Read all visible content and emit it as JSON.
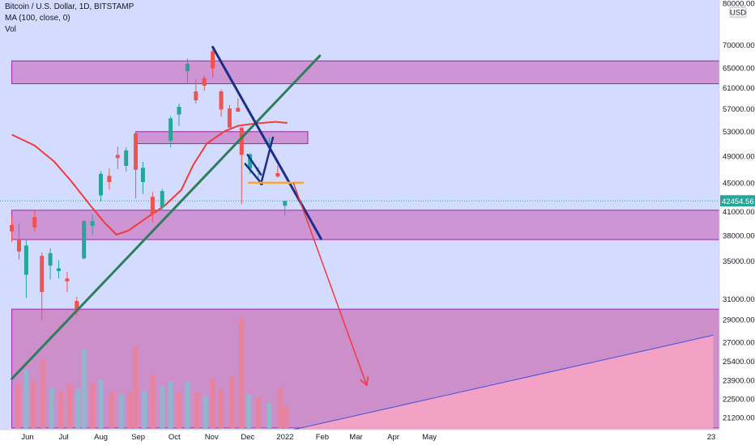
{
  "legend": {
    "symbol_line": "Bitcoin / U.S. Dollar, 1D, BITSTAMP",
    "ma_line": "MA (100, close, 0)",
    "vol_line": "Vol"
  },
  "currency_label": "USD",
  "colors": {
    "plot_bg": "#d3dcff",
    "zone_fill": "#cc88cc",
    "zone_border": "#9c27b0",
    "volume_zone": "#cc8fca",
    "pink_area": "#f7a3c3",
    "candle_up": "#26a69a",
    "candle_down": "#ef5350",
    "vol_up": "#8fb8ce",
    "vol_down": "#e9829b",
    "ma_line": "#f23a3a",
    "uptrend_line": "#2e7d5b",
    "downtrend_line": "#1a2f8a",
    "orange_level": "#f7a833",
    "projection_arrow": "#f23a3a",
    "last_price_bg": "#26a69a"
  },
  "chart_data": {
    "type": "candlestick",
    "y_scale": "log",
    "ylim": [
      20500,
      80000
    ],
    "x_ticks": [
      "Jun",
      "Jul",
      "Aug",
      "Sep",
      "Oct",
      "Nov",
      "Dec",
      "2022",
      "Feb",
      "Mar",
      "Apr",
      "May",
      "23"
    ],
    "y_ticks": [
      80000,
      70000,
      65000,
      61000,
      57000,
      53000,
      49000,
      45000,
      41000,
      38000,
      35000,
      31000,
      29000,
      27000,
      25400,
      23900,
      22500,
      21200
    ],
    "last_price": 42454.56,
    "last_price_label": "42454.56",
    "ma_label": "MA (100, close, 0)",
    "candles": [
      {
        "date": "2021-05-27",
        "o": 39300,
        "h": 40400,
        "l": 37200,
        "c": 38500
      },
      {
        "date": "2021-06-02",
        "o": 37500,
        "h": 39500,
        "l": 35200,
        "c": 36100
      },
      {
        "date": "2021-06-08",
        "o": 33500,
        "h": 37400,
        "l": 31100,
        "c": 36800
      },
      {
        "date": "2021-06-15",
        "o": 40300,
        "h": 41300,
        "l": 38500,
        "c": 39000
      },
      {
        "date": "2021-06-21",
        "o": 35600,
        "h": 36000,
        "l": 29000,
        "c": 31700
      },
      {
        "date": "2021-06-28",
        "o": 34500,
        "h": 36500,
        "l": 33000,
        "c": 35900
      },
      {
        "date": "2021-07-05",
        "o": 33900,
        "h": 35100,
        "l": 33100,
        "c": 34200
      },
      {
        "date": "2021-07-12",
        "o": 33100,
        "h": 33800,
        "l": 31700,
        "c": 32800
      },
      {
        "date": "2021-07-20",
        "o": 30800,
        "h": 31200,
        "l": 29400,
        "c": 29800
      },
      {
        "date": "2021-07-26",
        "o": 35300,
        "h": 39900,
        "l": 35200,
        "c": 39800
      },
      {
        "date": "2021-08-02",
        "o": 39200,
        "h": 40600,
        "l": 38000,
        "c": 39800
      },
      {
        "date": "2021-08-09",
        "o": 43200,
        "h": 46700,
        "l": 42400,
        "c": 46300
      },
      {
        "date": "2021-08-16",
        "o": 46000,
        "h": 47100,
        "l": 44000,
        "c": 45100
      },
      {
        "date": "2021-08-23",
        "o": 49200,
        "h": 50500,
        "l": 47000,
        "c": 48700
      },
      {
        "date": "2021-08-30",
        "o": 47500,
        "h": 50400,
        "l": 46600,
        "c": 49900
      },
      {
        "date": "2021-09-07",
        "o": 52700,
        "h": 52900,
        "l": 42800,
        "c": 46900
      },
      {
        "date": "2021-09-13",
        "o": 45100,
        "h": 48100,
        "l": 43400,
        "c": 47200
      },
      {
        "date": "2021-09-21",
        "o": 43000,
        "h": 43700,
        "l": 39600,
        "c": 40700
      },
      {
        "date": "2021-09-29",
        "o": 41600,
        "h": 44100,
        "l": 41200,
        "c": 43800
      },
      {
        "date": "2021-10-06",
        "o": 51500,
        "h": 55700,
        "l": 50400,
        "c": 55300
      },
      {
        "date": "2021-10-13",
        "o": 56000,
        "h": 58000,
        "l": 54000,
        "c": 57400
      },
      {
        "date": "2021-10-20",
        "o": 64300,
        "h": 67000,
        "l": 62000,
        "c": 65900
      },
      {
        "date": "2021-10-27",
        "o": 60300,
        "h": 62600,
        "l": 58000,
        "c": 58600
      },
      {
        "date": "2021-11-03",
        "o": 62900,
        "h": 63500,
        "l": 60400,
        "c": 61400
      },
      {
        "date": "2021-11-10",
        "o": 68600,
        "h": 69000,
        "l": 63000,
        "c": 64900
      },
      {
        "date": "2021-11-17",
        "o": 60300,
        "h": 60700,
        "l": 55600,
        "c": 56900
      },
      {
        "date": "2021-11-24",
        "o": 57100,
        "h": 57700,
        "l": 53600,
        "c": 53700
      },
      {
        "date": "2021-12-01",
        "o": 57200,
        "h": 59000,
        "l": 56500,
        "c": 56500
      },
      {
        "date": "2021-12-04",
        "o": 53700,
        "h": 53800,
        "l": 42000,
        "c": 49200
      },
      {
        "date": "2021-12-11",
        "o": 47100,
        "h": 49500,
        "l": 46300,
        "c": 49300
      },
      {
        "date": "2021-12-18",
        "o": 46700,
        "h": 47300,
        "l": 45500,
        "c": 46800
      },
      {
        "date": "2021-12-27",
        "o": 50700,
        "h": 52000,
        "l": 50500,
        "c": 50700
      },
      {
        "date": "2022-01-03",
        "o": 46400,
        "h": 47500,
        "l": 45700,
        "c": 45900
      },
      {
        "date": "2022-01-09",
        "o": 41800,
        "h": 42300,
        "l": 40500,
        "c": 42454.56
      }
    ],
    "ma100": [
      {
        "date": "2021-05-27",
        "v": 52500
      },
      {
        "date": "2021-06-15",
        "v": 50700
      },
      {
        "date": "2021-07-01",
        "v": 48200
      },
      {
        "date": "2021-07-15",
        "v": 45300
      },
      {
        "date": "2021-08-01",
        "v": 41700
      },
      {
        "date": "2021-08-12",
        "v": 39600
      },
      {
        "date": "2021-08-22",
        "v": 38100
      },
      {
        "date": "2021-09-01",
        "v": 38600
      },
      {
        "date": "2021-09-15",
        "v": 40100
      },
      {
        "date": "2021-10-01",
        "v": 41800
      },
      {
        "date": "2021-10-15",
        "v": 44000
      },
      {
        "date": "2021-10-25",
        "v": 47700
      },
      {
        "date": "2021-11-05",
        "v": 51000
      },
      {
        "date": "2021-11-20",
        "v": 53100
      },
      {
        "date": "2021-12-01",
        "v": 54000
      },
      {
        "date": "2021-12-15",
        "v": 54400
      },
      {
        "date": "2022-01-01",
        "v": 54700
      },
      {
        "date": "2022-01-11",
        "v": 54500
      }
    ],
    "volume": [
      {
        "date": "2021-06-01",
        "v": 0.55,
        "up": false
      },
      {
        "date": "2021-06-08",
        "v": 0.72,
        "up": true
      },
      {
        "date": "2021-06-14",
        "v": 0.58,
        "up": false
      },
      {
        "date": "2021-06-22",
        "v": 0.85,
        "up": false
      },
      {
        "date": "2021-06-29",
        "v": 0.5,
        "up": true
      },
      {
        "date": "2021-07-07",
        "v": 0.45,
        "up": false
      },
      {
        "date": "2021-07-14",
        "v": 0.55,
        "up": false
      },
      {
        "date": "2021-07-21",
        "v": 0.48,
        "up": true
      },
      {
        "date": "2021-07-26",
        "v": 0.98,
        "up": true
      },
      {
        "date": "2021-08-02",
        "v": 0.55,
        "up": false
      },
      {
        "date": "2021-08-09",
        "v": 0.6,
        "up": true
      },
      {
        "date": "2021-08-18",
        "v": 0.45,
        "up": false
      },
      {
        "date": "2021-08-26",
        "v": 0.42,
        "up": true
      },
      {
        "date": "2021-09-02",
        "v": 0.44,
        "up": false
      },
      {
        "date": "2021-09-07",
        "v": 1.0,
        "up": false
      },
      {
        "date": "2021-09-14",
        "v": 0.46,
        "up": true
      },
      {
        "date": "2021-09-21",
        "v": 0.66,
        "up": false
      },
      {
        "date": "2021-09-29",
        "v": 0.52,
        "up": true
      },
      {
        "date": "2021-10-06",
        "v": 0.58,
        "up": true
      },
      {
        "date": "2021-10-13",
        "v": 0.44,
        "up": false
      },
      {
        "date": "2021-10-20",
        "v": 0.58,
        "up": true
      },
      {
        "date": "2021-10-28",
        "v": 0.43,
        "up": false
      },
      {
        "date": "2021-11-04",
        "v": 0.4,
        "up": true
      },
      {
        "date": "2021-11-10",
        "v": 0.62,
        "up": false
      },
      {
        "date": "2021-11-17",
        "v": 0.48,
        "up": false
      },
      {
        "date": "2021-11-26",
        "v": 0.64,
        "up": false
      },
      {
        "date": "2021-12-04",
        "v": 1.35,
        "up": false
      },
      {
        "date": "2021-12-10",
        "v": 0.42,
        "up": true
      },
      {
        "date": "2021-12-18",
        "v": 0.38,
        "up": false
      },
      {
        "date": "2021-12-27",
        "v": 0.32,
        "up": true
      },
      {
        "date": "2022-01-05",
        "v": 0.5,
        "up": false
      },
      {
        "date": "2022-01-10",
        "v": 0.28,
        "up": false
      }
    ],
    "zones": [
      {
        "name": "resistance-zone",
        "from_date": "2021-05-27",
        "to_date": "2023-01-05",
        "top": 66500,
        "bottom": 61800
      },
      {
        "name": "mid-zone",
        "from_date": "2021-09-07",
        "to_date": "2022-01-28",
        "top": 53000,
        "bottom": 51000
      },
      {
        "name": "support-zone",
        "from_date": "2021-05-27",
        "to_date": "2023-01-05",
        "top": 41200,
        "bottom": 37500
      },
      {
        "name": "volume-zone",
        "from_date": "2021-05-27",
        "to_date": "2023-01-05",
        "top": 30000,
        "bottom": 20500
      }
    ],
    "trendlines": [
      {
        "name": "uptrend-line",
        "from": {
          "date": "2021-05-27",
          "v": 24000
        },
        "to": {
          "date": "2022-02-07",
          "v": 67600
        }
      },
      {
        "name": "downtrend-line",
        "from": {
          "date": "2021-11-10",
          "v": 69500
        },
        "to": {
          "date": "2022-02-08",
          "v": 37600
        }
      },
      {
        "name": "channel-upper",
        "from": {
          "date": "2021-12-09",
          "v": 49200
        },
        "to": {
          "date": "2021-12-20",
          "v": 46200
        }
      },
      {
        "name": "channel-lower",
        "from": {
          "date": "2021-12-07",
          "v": 47800
        },
        "to": {
          "date": "2021-12-21",
          "v": 44800
        }
      },
      {
        "name": "breakout-leg",
        "from": {
          "date": "2021-12-20",
          "v": 44800
        },
        "to": {
          "date": "2021-12-30",
          "v": 52000
        }
      },
      {
        "name": "orange-level",
        "from": {
          "date": "2021-12-10",
          "v": 45000
        },
        "to": {
          "date": "2022-01-24",
          "v": 45000
        }
      }
    ],
    "projection": {
      "from": {
        "date": "2022-01-16",
        "v": 45000
      },
      "to": {
        "date": "2022-03-18",
        "v": 23500
      }
    },
    "pink_area": {
      "from": {
        "date": "2022-01-16",
        "v": 20500
      },
      "to": {
        "date": "2022-12-31",
        "v": 27600
      }
    }
  }
}
